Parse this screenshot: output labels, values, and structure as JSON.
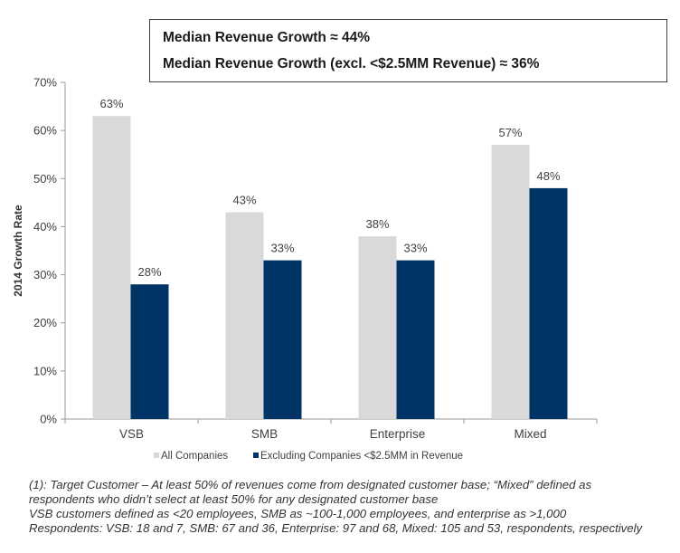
{
  "callout": {
    "line1": "Median Revenue Growth ≈ 44%",
    "line2": "Median Revenue Growth (excl. <$2.5MM Revenue) ≈ 36%"
  },
  "chart_data": {
    "type": "bar",
    "categories": [
      "VSB",
      "SMB",
      "Enterprise",
      "Mixed"
    ],
    "series": [
      {
        "name": "All Companies",
        "values": [
          63,
          43,
          38,
          57
        ],
        "color": "#d9d9d9"
      },
      {
        "name": "Excluding Companies <$2.5MM in Revenue",
        "values": [
          28,
          33,
          33,
          48
        ],
        "color": "#003366"
      }
    ],
    "value_suffix": "%",
    "ylabel": "2014 Growth Rate",
    "ylim": [
      0,
      70
    ],
    "yticks": [
      "0%",
      "10%",
      "20%",
      "30%",
      "40%",
      "50%",
      "60%",
      "70%"
    ],
    "grid": false,
    "legend_position": "bottom"
  },
  "footnote": {
    "line1": "(1): Target Customer – At least 50% of revenues come from designated customer base; “Mixed” defined as",
    "line2": "respondents who didn’t select at least 50% for any designated customer base",
    "line3": "VSB customers defined as <20 employees, SMB as ~100-1,000 employees, and enterprise as >1,000",
    "line4": "Respondents: VSB: 18 and 7, SMB: 67 and 36, Enterprise: 97 and 68, Mixed: 105 and 53, respondents, respectively"
  }
}
